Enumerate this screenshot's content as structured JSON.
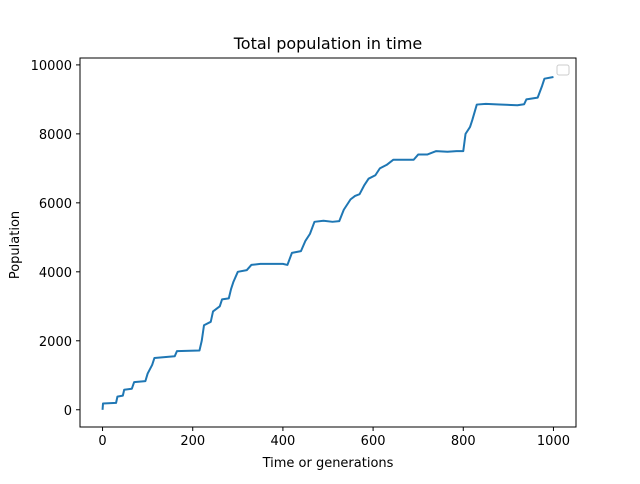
{
  "chart_data": {
    "type": "line",
    "title": "Total population in time",
    "xlabel": "Time or generations",
    "ylabel": "Population",
    "xlim": [
      -50,
      1050
    ],
    "ylim": [
      -500,
      10200
    ],
    "xticks": [
      0,
      200,
      400,
      600,
      800,
      1000
    ],
    "yticks": [
      0,
      2000,
      4000,
      6000,
      8000,
      10000
    ],
    "grid": false,
    "legend": "top-right (empty)",
    "series": [
      {
        "color": "#1f77b4",
        "points": [
          [
            0,
            0
          ],
          [
            1,
            180
          ],
          [
            30,
            200
          ],
          [
            33,
            380
          ],
          [
            45,
            410
          ],
          [
            48,
            580
          ],
          [
            65,
            610
          ],
          [
            70,
            800
          ],
          [
            95,
            830
          ],
          [
            100,
            1050
          ],
          [
            110,
            1300
          ],
          [
            115,
            1500
          ],
          [
            160,
            1550
          ],
          [
            165,
            1700
          ],
          [
            215,
            1720
          ],
          [
            220,
            2000
          ],
          [
            225,
            2450
          ],
          [
            240,
            2550
          ],
          [
            245,
            2850
          ],
          [
            260,
            3000
          ],
          [
            265,
            3200
          ],
          [
            280,
            3230
          ],
          [
            285,
            3500
          ],
          [
            290,
            3700
          ],
          [
            300,
            4000
          ],
          [
            320,
            4050
          ],
          [
            330,
            4200
          ],
          [
            350,
            4230
          ],
          [
            400,
            4230
          ],
          [
            410,
            4200
          ],
          [
            420,
            4550
          ],
          [
            440,
            4600
          ],
          [
            450,
            4900
          ],
          [
            460,
            5100
          ],
          [
            470,
            5450
          ],
          [
            490,
            5480
          ],
          [
            510,
            5450
          ],
          [
            525,
            5470
          ],
          [
            535,
            5800
          ],
          [
            550,
            6100
          ],
          [
            560,
            6200
          ],
          [
            570,
            6250
          ],
          [
            580,
            6500
          ],
          [
            590,
            6700
          ],
          [
            605,
            6800
          ],
          [
            615,
            7000
          ],
          [
            630,
            7100
          ],
          [
            645,
            7250
          ],
          [
            690,
            7250
          ],
          [
            700,
            7400
          ],
          [
            720,
            7400
          ],
          [
            740,
            7500
          ],
          [
            765,
            7480
          ],
          [
            785,
            7500
          ],
          [
            800,
            7500
          ],
          [
            805,
            8000
          ],
          [
            815,
            8200
          ],
          [
            820,
            8400
          ],
          [
            830,
            8850
          ],
          [
            850,
            8870
          ],
          [
            880,
            8850
          ],
          [
            920,
            8830
          ],
          [
            935,
            8860
          ],
          [
            940,
            9000
          ],
          [
            965,
            9050
          ],
          [
            975,
            9400
          ],
          [
            980,
            9600
          ],
          [
            1000,
            9650
          ]
        ]
      }
    ]
  }
}
